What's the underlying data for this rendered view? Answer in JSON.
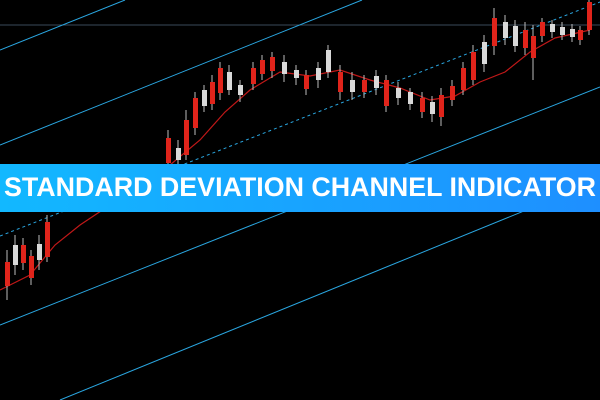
{
  "banner": {
    "title": "STANDARD DEVIATION CHANNEL INDICATOR"
  }
}
